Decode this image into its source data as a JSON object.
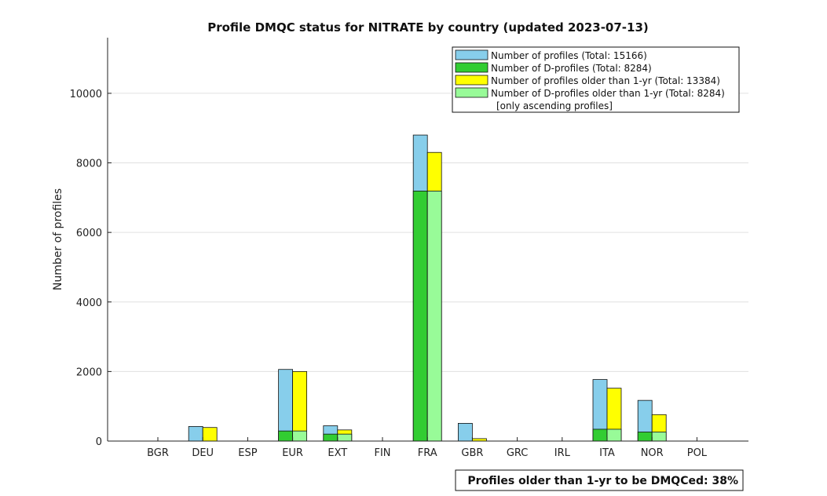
{
  "chart_data": {
    "type": "bar",
    "title": "Profile DMQC status for NITRATE by country (updated 2023-07-13)",
    "xlabel": "",
    "ylabel": "Number of profiles",
    "ylim": [
      0,
      11600
    ],
    "yticks": [
      0,
      2000,
      4000,
      6000,
      8000,
      10000
    ],
    "grid": true,
    "legend_position": "top-right",
    "categories": [
      "BGR",
      "DEU",
      "ESP",
      "EUR",
      "EXT",
      "FIN",
      "FRA",
      "GBR",
      "GRC",
      "IRL",
      "ITA",
      "NOR",
      "POL"
    ],
    "series": [
      {
        "name": "Number of profiles (Total: 15166)",
        "color": "#87ceeb",
        "values": [
          0,
          420,
          0,
          2060,
          440,
          0,
          8800,
          510,
          0,
          0,
          1770,
          1170,
          0
        ]
      },
      {
        "name": "Number of D-profiles (Total: 8284)",
        "color": "#32cd32",
        "values": [
          0,
          0,
          0,
          290,
          200,
          0,
          7190,
          0,
          0,
          0,
          340,
          260,
          0
        ]
      },
      {
        "name": "Number of profiles older than 1-yr (Total: 13384)",
        "color": "#ffff00",
        "values": [
          0,
          390,
          0,
          2000,
          320,
          0,
          8300,
          70,
          0,
          0,
          1520,
          760,
          0
        ]
      },
      {
        "name": "Number of D-profiles older than 1-yr (Total: 8284)",
        "color": "#98fb98",
        "values": [
          0,
          0,
          0,
          290,
          200,
          0,
          7190,
          0,
          0,
          0,
          340,
          260,
          0
        ]
      }
    ],
    "legend_note": "[only ascending profiles]",
    "footnote": "Profiles older than 1-yr to be DMQCed: 38%"
  }
}
